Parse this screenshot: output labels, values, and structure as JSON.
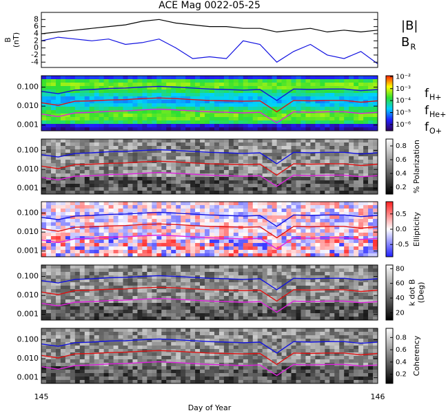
{
  "chart_data": [
    {
      "type": "line",
      "title": "ACE Mag 0022-05-25",
      "ylabel": [
        "B",
        "(nT)"
      ],
      "x": [
        145.0,
        145.05,
        145.1,
        145.15,
        145.2,
        145.25,
        145.3,
        145.35,
        145.4,
        145.45,
        145.5,
        145.55,
        145.6,
        145.65,
        145.7,
        145.75,
        145.8,
        145.85,
        145.9,
        145.95,
        146.0
      ],
      "xlim": [
        145,
        146
      ],
      "ylim": [
        -5.5,
        10
      ],
      "yticks": [
        -4,
        -2,
        0,
        2,
        4,
        6,
        8
      ],
      "series": [
        {
          "name": "|B|",
          "color": "#000000",
          "values": [
            4,
            4.5,
            5,
            5.5,
            6,
            6.5,
            7.5,
            8,
            7,
            6.5,
            6,
            6,
            5.5,
            5.5,
            4.5,
            5,
            5.5,
            4.5,
            5,
            4.5,
            5
          ]
        },
        {
          "name": "B",
          "name_sub": "R",
          "color": "#1010e0",
          "values": [
            2,
            3,
            2.5,
            2,
            2.5,
            1,
            1.5,
            2.5,
            0,
            -3,
            -2.5,
            -3,
            2,
            1,
            -4,
            -1,
            1,
            -2,
            -3,
            -1,
            -4.5
          ]
        }
      ]
    },
    {
      "type": "spectrogram",
      "ylog": true,
      "xlim": [
        145,
        146
      ],
      "ylim": [
        0.0005,
        0.4
      ],
      "yticks": [
        0.001,
        {
          "value": 0.01,
          "label": "0.010"
        },
        {
          "value": 0.1,
          "label": "0.100"
        }
      ],
      "x": [
        145.0,
        145.05,
        145.1,
        145.15,
        145.2,
        145.25,
        145.3,
        145.35,
        145.4,
        145.45,
        145.5,
        145.55,
        145.6,
        145.65,
        145.7,
        145.75,
        145.8,
        145.85,
        145.9,
        145.95,
        146.0
      ],
      "series": [
        {
          "name": "f",
          "name_sub": "H+",
          "color": "#1010e0",
          "values": [
            0.06,
            0.045,
            0.07,
            0.075,
            0.085,
            0.09,
            0.1,
            0.11,
            0.1,
            0.09,
            0.08,
            0.075,
            0.07,
            0.075,
            0.02,
            0.08,
            0.075,
            0.08,
            0.08,
            0.065,
            0.075
          ]
        },
        {
          "name": "f",
          "name_sub": "He+",
          "color": "#e01010",
          "values": [
            0.015,
            0.011,
            0.018,
            0.019,
            0.021,
            0.022,
            0.025,
            0.027,
            0.025,
            0.022,
            0.02,
            0.019,
            0.018,
            0.019,
            0.005,
            0.02,
            0.019,
            0.02,
            0.02,
            0.016,
            0.019
          ]
        },
        {
          "name": "f",
          "name_sub": "O+",
          "color": "#e020e0",
          "values": [
            0.0038,
            0.0028,
            0.0044,
            0.0047,
            0.0053,
            0.0056,
            0.0063,
            0.0069,
            0.0063,
            0.0056,
            0.005,
            0.0047,
            0.0044,
            0.0047,
            0.0013,
            0.005,
            0.0047,
            0.005,
            0.005,
            0.0041,
            0.0047
          ]
        }
      ],
      "colorbar": {
        "log": true,
        "lim": [
          3e-07,
          0.012
        ],
        "colormap": [
          "#30005a",
          "#2020ff",
          "#00d0ff",
          "#30e030",
          "#ffff00",
          "#ff2000"
        ],
        "ticks": [
          {
            "value": 1e-06,
            "label": "10⁻⁶"
          },
          {
            "value": 1e-05,
            "label": "10⁻⁵"
          },
          {
            "value": 0.0001,
            "label": "10⁻⁴"
          },
          {
            "value": 0.001,
            "label": "10⁻³"
          },
          {
            "value": 0.01,
            "label": "10⁻²"
          }
        ]
      }
    },
    {
      "type": "spectrogram",
      "ylog": true,
      "xlim": [
        145,
        146
      ],
      "ylim": [
        0.0005,
        0.4
      ],
      "yticks": [
        0.001,
        {
          "value": 0.01,
          "label": "0.010"
        },
        {
          "value": 0.1,
          "label": "0.100"
        }
      ],
      "colorbar": {
        "lim": [
          0.1,
          0.9
        ],
        "colormap": [
          "#000000",
          "#ffffff"
        ],
        "ticks": [
          0.2,
          0.4,
          0.6,
          0.8
        ],
        "label": [
          "% Polarization"
        ]
      }
    },
    {
      "type": "spectrogram",
      "ylog": true,
      "xlim": [
        145,
        146
      ],
      "ylim": [
        0.0005,
        0.4
      ],
      "yticks": [
        0.001,
        {
          "value": 0.01,
          "label": "0.010"
        },
        {
          "value": 0.1,
          "label": "0.100"
        }
      ],
      "colorbar": {
        "lim": [
          -0.9,
          0.9
        ],
        "colormap": [
          "#2020ff",
          "#ffffff",
          "#ff2020"
        ],
        "ticks": [
          -0.5,
          {
            "value": 0,
            "label": "0.0"
          },
          0.5
        ],
        "label": [
          "Ellipticity"
        ]
      }
    },
    {
      "type": "spectrogram",
      "ylog": true,
      "xlim": [
        145,
        146
      ],
      "ylim": [
        0.0005,
        0.4
      ],
      "yticks": [
        0.001,
        {
          "value": 0.01,
          "label": "0.010"
        },
        {
          "value": 0.1,
          "label": "0.100"
        }
      ],
      "colorbar": {
        "lim": [
          10,
          85
        ],
        "colormap": [
          "#000000",
          "#ffffff"
        ],
        "ticks": [
          20,
          40,
          60,
          80
        ],
        "label": [
          "k dot B",
          "(Deg)"
        ]
      }
    },
    {
      "type": "spectrogram",
      "ylog": true,
      "xlim": [
        145,
        146
      ],
      "ylim": [
        0.0005,
        0.4
      ],
      "yticks": [
        0.001,
        {
          "value": 0.01,
          "label": "0.010"
        },
        {
          "value": 0.1,
          "label": "0.100"
        }
      ],
      "xticks": [
        145,
        146
      ],
      "xlabel": "Day of Year",
      "colorbar": {
        "lim": [
          0.05,
          0.95
        ],
        "colormap": [
          "#000000",
          "#ffffff"
        ],
        "ticks": [
          0.2,
          0.4,
          0.6,
          0.8
        ],
        "label": [
          "Coherency"
        ]
      }
    }
  ]
}
